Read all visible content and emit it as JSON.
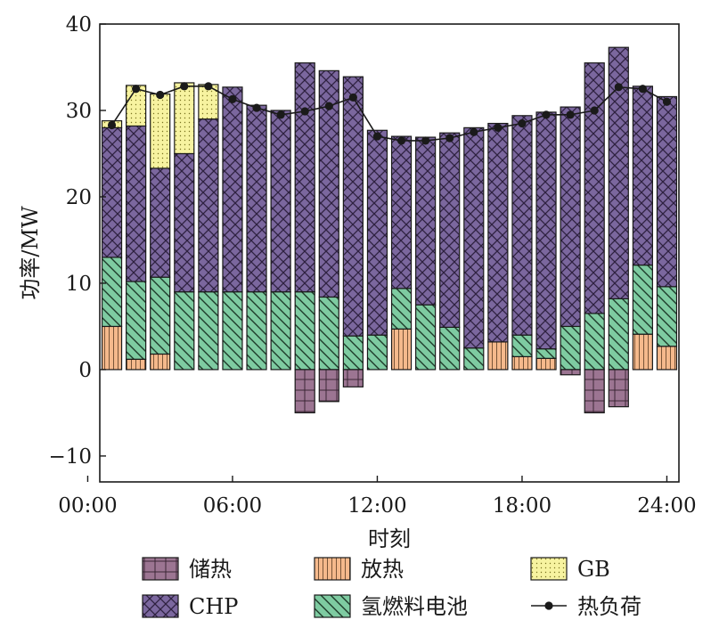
{
  "chart_data": {
    "type": "bar",
    "stacked": true,
    "xlabel": "时刻",
    "ylabel": "功率/MW",
    "ylim": [
      -13,
      40
    ],
    "yticks": [
      -10,
      0,
      10,
      20,
      30,
      40
    ],
    "ytick_labels": [
      "−10",
      "0",
      "10",
      "20",
      "30",
      "40"
    ],
    "xlim": [
      0.5,
      24.5
    ],
    "xticks": [
      0,
      6,
      12,
      18,
      24
    ],
    "xtick_labels": [
      "00:00",
      "06:00",
      "12:00",
      "18:00",
      "24:00"
    ],
    "x": [
      1,
      2,
      3,
      4,
      5,
      6,
      7,
      8,
      9,
      10,
      11,
      12,
      13,
      14,
      15,
      16,
      17,
      18,
      19,
      20,
      21,
      22,
      23,
      24
    ],
    "legend_position": "bottom",
    "series": [
      {
        "name": "放热",
        "key": "release",
        "color": "#f5b98c",
        "pattern": "vertical",
        "values": [
          5.0,
          1.2,
          1.8,
          0,
          0,
          0,
          0,
          0,
          0,
          0,
          0,
          0,
          4.7,
          0,
          0,
          0,
          3.2,
          1.5,
          1.3,
          0,
          0,
          0,
          4.1,
          2.7
        ]
      },
      {
        "name": "氢燃料电池",
        "key": "fuelcell",
        "color": "#7ecba1",
        "pattern": "diagonal",
        "values": [
          8.0,
          9.0,
          8.9,
          9.0,
          9.0,
          9.0,
          9.0,
          9.0,
          9.0,
          8.4,
          3.9,
          4.0,
          4.7,
          7.5,
          4.9,
          2.5,
          0,
          2.5,
          1.1,
          5.0,
          6.5,
          8.2,
          8.0,
          6.9
        ]
      },
      {
        "name": "CHP",
        "key": "chp",
        "color": "#7b679e",
        "pattern": "crosshatch",
        "values": [
          15.0,
          18.0,
          12.6,
          16.0,
          20.0,
          23.7,
          21.6,
          21.0,
          26.5,
          26.2,
          30.0,
          23.7,
          17.6,
          19.4,
          22.5,
          25.5,
          25.3,
          25.4,
          27.4,
          25.4,
          29.0,
          29.1,
          20.7,
          22.0
        ]
      },
      {
        "name": "GB",
        "key": "gb",
        "color": "#f7f3a0",
        "pattern": "dots",
        "values": [
          0.8,
          4.7,
          8.6,
          8.2,
          4.0,
          0,
          0,
          0,
          0,
          0,
          0,
          0,
          0,
          0,
          0,
          0,
          0,
          0,
          0,
          0,
          0,
          0,
          0,
          0
        ]
      },
      {
        "name": "储热",
        "key": "storage",
        "color": "#9c7592",
        "pattern": "grid",
        "values": [
          0,
          0,
          0,
          0,
          0,
          0,
          0,
          0,
          -5.0,
          -3.7,
          -2.0,
          0,
          0,
          0,
          0,
          0,
          0,
          0,
          0,
          -0.6,
          -5.0,
          -4.3,
          0,
          0
        ]
      },
      {
        "name": "热负荷",
        "key": "load",
        "type": "line",
        "color": "#1a1a1a",
        "values": [
          28.3,
          32.5,
          31.8,
          32.8,
          32.8,
          31.3,
          30.3,
          29.5,
          29.9,
          30.5,
          31.5,
          27.0,
          26.5,
          26.5,
          26.8,
          27.5,
          28.0,
          28.5,
          29.5,
          29.5,
          30.0,
          32.7,
          32.5,
          31.0
        ]
      }
    ]
  },
  "legend": {
    "items": [
      {
        "key": "storage",
        "label": "储热"
      },
      {
        "key": "release",
        "label": "放热"
      },
      {
        "key": "gb",
        "label": "GB"
      },
      {
        "key": "chp",
        "label": "CHP"
      },
      {
        "key": "fuelcell",
        "label": "氢燃料电池"
      },
      {
        "key": "load",
        "label": "热负荷"
      }
    ]
  }
}
